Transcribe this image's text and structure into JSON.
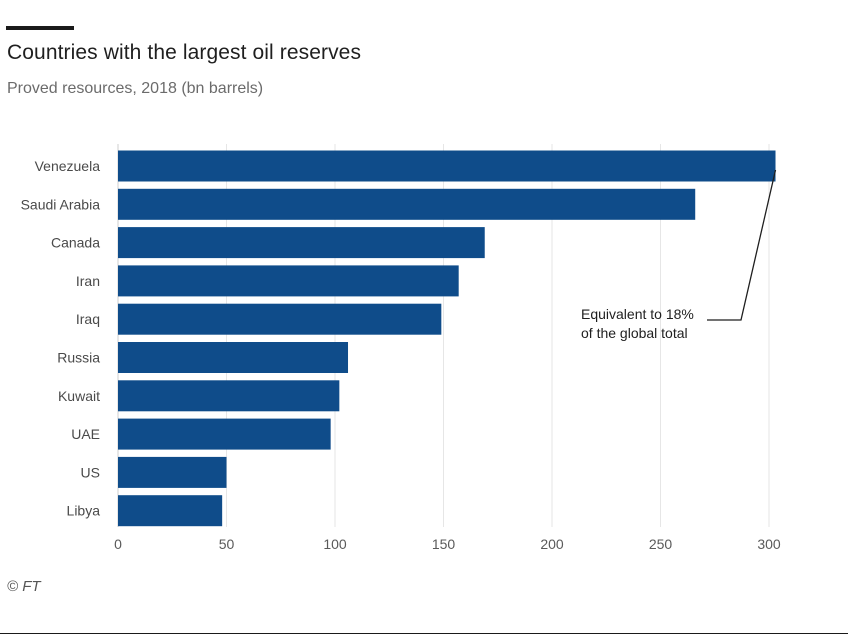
{
  "chart_data": {
    "type": "bar",
    "orientation": "horizontal",
    "title": "Countries with the largest oil reserves",
    "subtitle": "Proved resources, 2018 (bn barrels)",
    "categories": [
      "Venezuela",
      "Saudi Arabia",
      "Canada",
      "Iran",
      "Iraq",
      "Russia",
      "Kuwait",
      "UAE",
      "US",
      "Libya"
    ],
    "values": [
      303,
      266,
      169,
      157,
      149,
      106,
      102,
      98,
      50,
      48
    ],
    "xlim": [
      0,
      300
    ],
    "xticks": [
      "0",
      "50",
      "100",
      "150",
      "200",
      "250",
      "300"
    ],
    "grid": true,
    "bar_color": "#0f4c8a",
    "annotation": {
      "lines": [
        "Equivalent to 18%",
        "of the global total"
      ],
      "target": "Venezuela"
    }
  },
  "source": "© FT",
  "colors": {
    "bar": "#0f4c8a",
    "grid": "#e6e6e6",
    "text": "#1f1f1f",
    "muted": "#6b6b6b"
  }
}
